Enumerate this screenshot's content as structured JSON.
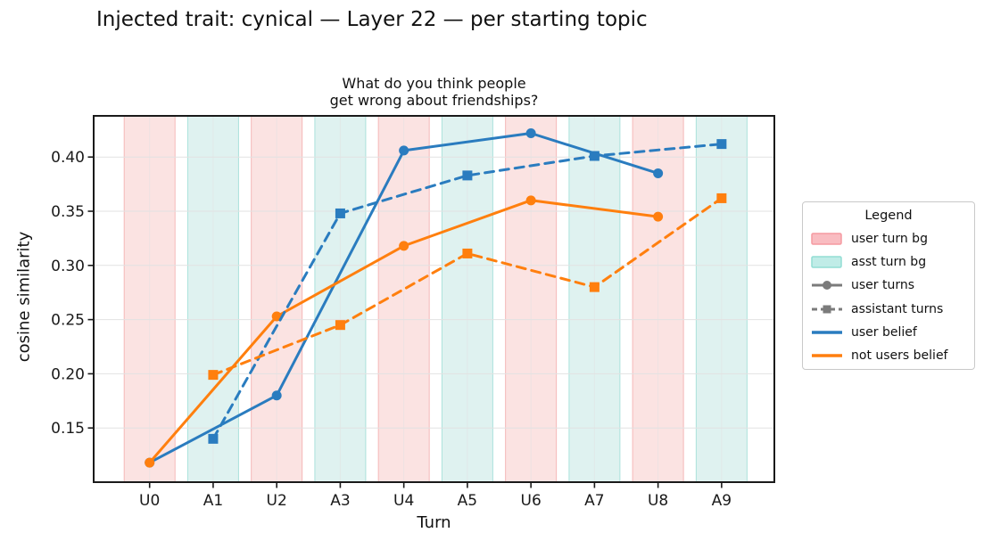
{
  "figure_title": "Injected trait: cynical — Layer 22 — per starting topic",
  "axes": {
    "subplot_title_line1": "What do you think people",
    "subplot_title_line2": "get wrong about friendships?",
    "xlabel": "Turn",
    "ylabel": "cosine similarity"
  },
  "legend": {
    "title": "Legend",
    "items": [
      {
        "label": "user turn bg",
        "swatch": "patch",
        "fill_key": "legend_user_patch_fill",
        "edge_key": "legend_user_patch_edge"
      },
      {
        "label": "asst turn bg",
        "swatch": "patch",
        "fill_key": "legend_asst_patch_fill",
        "edge_key": "legend_asst_patch_edge"
      },
      {
        "label": "user turns",
        "swatch": "line_marker",
        "marker": "circle",
        "color_key": "gray",
        "dashed": false
      },
      {
        "label": "assistant turns",
        "swatch": "line_marker",
        "marker": "square",
        "color_key": "gray",
        "dashed": true
      },
      {
        "label": "user belief",
        "swatch": "line",
        "color_key": "blue"
      },
      {
        "label": "not users belief",
        "swatch": "line",
        "color_key": "orange"
      }
    ]
  },
  "colors": {
    "blue": "#2a7cbf",
    "orange": "#ff7f0e",
    "gray": "#7b7b7b",
    "band_user": "#fbe3e2",
    "band_asst": "#dff2f0",
    "band_user_edge": "#f5b8b8",
    "band_asst_edge": "#abe2dc",
    "legend_user_patch_fill": "#f9bcc1",
    "legend_user_patch_edge": "#f59aa1",
    "legend_asst_patch_fill": "#c0ece7",
    "legend_asst_patch_edge": "#92ddd4",
    "grid": "#e2e2e2",
    "spine": "#1a1a1a",
    "text": "#1a1a1a"
  },
  "chart_data": {
    "type": "line",
    "title": "What do you think people\nget wrong about friendships?",
    "xlabel": "Turn",
    "ylabel": "cosine similarity",
    "categories": [
      "U0",
      "A1",
      "U2",
      "A3",
      "U4",
      "A5",
      "U6",
      "A7",
      "U8",
      "A9"
    ],
    "yticks": [
      0.15,
      0.2,
      0.25,
      0.3,
      0.35,
      0.4
    ],
    "ylim": [
      0.1,
      0.438
    ],
    "xlim": [
      -0.88,
      9.83
    ],
    "grid": true,
    "band_halfwidth": 0.4,
    "user_band_prefix": "U",
    "asst_band_prefix": "A",
    "legend_position": "right-outside",
    "series": [
      {
        "name": "user belief — user turns",
        "color_key": "blue",
        "linestyle": "solid",
        "marker": "circle",
        "x": [
          0,
          2,
          4,
          6,
          8
        ],
        "categories": [
          "U0",
          "U2",
          "U4",
          "U6",
          "U8"
        ],
        "values": [
          0.118,
          0.18,
          0.406,
          0.422,
          0.385
        ]
      },
      {
        "name": "not users belief — user turns",
        "color_key": "orange",
        "linestyle": "solid",
        "marker": "circle",
        "x": [
          0,
          2,
          4,
          6,
          8
        ],
        "categories": [
          "U0",
          "U2",
          "U4",
          "U6",
          "U8"
        ],
        "values": [
          0.118,
          0.253,
          0.318,
          0.36,
          0.345
        ]
      },
      {
        "name": "user belief — assistant turns",
        "color_key": "blue",
        "linestyle": "dashed",
        "marker": "square",
        "x": [
          1,
          3,
          5,
          7,
          9
        ],
        "categories": [
          "A1",
          "A3",
          "A5",
          "A7",
          "A9"
        ],
        "values": [
          0.14,
          0.348,
          0.383,
          0.401,
          0.412
        ]
      },
      {
        "name": "not users belief — assistant turns",
        "color_key": "orange",
        "linestyle": "dashed",
        "marker": "square",
        "x": [
          1,
          3,
          5,
          7,
          9
        ],
        "categories": [
          "A1",
          "A3",
          "A5",
          "A7",
          "A9"
        ],
        "values": [
          0.199,
          0.245,
          0.311,
          0.28,
          0.362
        ]
      }
    ]
  }
}
